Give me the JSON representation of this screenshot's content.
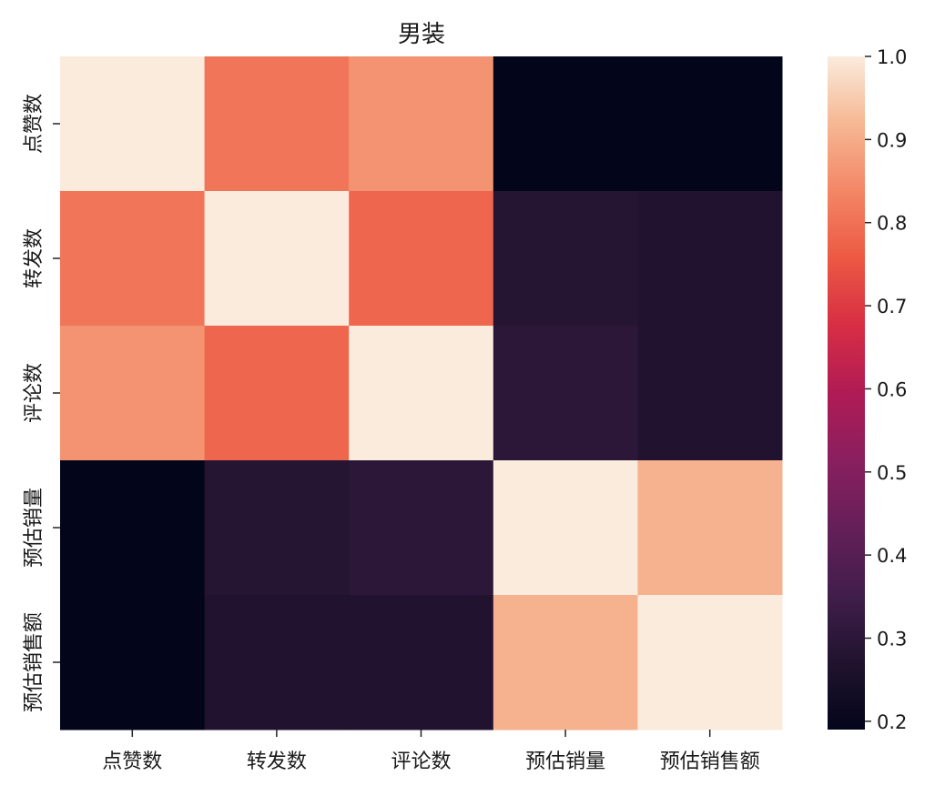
{
  "chart_data": {
    "type": "heatmap",
    "title": "男装",
    "xlabel": "",
    "ylabel": "",
    "x_labels": [
      "点赞数",
      "转发数",
      "评论数",
      "预估销量",
      "预估销售额"
    ],
    "y_labels": [
      "点赞数",
      "转发数",
      "评论数",
      "预估销量",
      "预估销售额"
    ],
    "matrix": [
      [
        1.0,
        0.81,
        0.86,
        0.19,
        0.19
      ],
      [
        0.81,
        1.0,
        0.78,
        0.28,
        0.27
      ],
      [
        0.86,
        0.78,
        1.0,
        0.3,
        0.27
      ],
      [
        0.19,
        0.28,
        0.3,
        1.0,
        0.91
      ],
      [
        0.19,
        0.27,
        0.27,
        0.91,
        1.0
      ]
    ],
    "colorbar": {
      "min": 0.19,
      "max": 1.0,
      "ticks": [
        "0.2",
        "0.3",
        "0.4",
        "0.5",
        "0.6",
        "0.7",
        "0.8",
        "0.9",
        "1.0"
      ],
      "colormap": "rocket",
      "low_color": "#03051a",
      "high_color": "#faebdd"
    },
    "grid": false,
    "legend": "colorbar-right"
  }
}
